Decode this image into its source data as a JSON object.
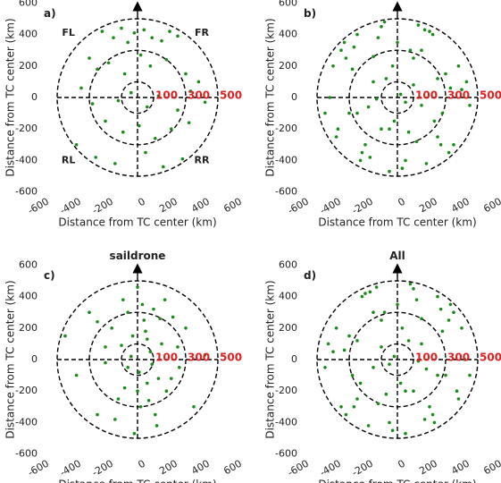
{
  "chart_data": [
    {
      "type": "scatter",
      "panel_label": "a)",
      "x_label": "Distance from TC center (km)",
      "y_label": "Distance from TC center (km)",
      "xlim": [
        -600,
        600
      ],
      "ylim": [
        -600,
        600
      ],
      "xticks": [
        -600,
        -400,
        -200,
        0,
        200,
        400,
        600
      ],
      "yticks": [
        -600,
        -400,
        -200,
        0,
        200,
        400,
        600
      ],
      "rings": [
        100,
        300,
        500
      ],
      "quadrant_labels": [
        "FL",
        "FR",
        "RL",
        "RR"
      ],
      "series": [
        {
          "color": "#1a8a1a",
          "x": [
            -220,
            -150,
            -100,
            -60,
            -20,
            40,
            90,
            150,
            200,
            250,
            -300,
            -250,
            -180,
            -80,
            20,
            80,
            180,
            300,
            380,
            -350,
            -280,
            -120,
            -40,
            60,
            130,
            250,
            330,
            420,
            -200,
            -90,
            10,
            110,
            210,
            320,
            -380,
            -260,
            -140,
            50,
            160,
            280
          ],
          "values": [
            420,
            380,
            440,
            350,
            410,
            430,
            380,
            360,
            420,
            390,
            250,
            180,
            220,
            150,
            270,
            200,
            240,
            150,
            100,
            60,
            -40,
            -20,
            30,
            -60,
            10,
            -80,
            40,
            -30,
            -150,
            -220,
            -180,
            -260,
            -200,
            -160,
            -300,
            -380,
            -420,
            -350,
            -440,
            -390
          ]
        }
      ]
    },
    {
      "type": "scatter",
      "panel_label": "b)",
      "x_label": "Distance from TC center (km)",
      "y_label": "Distance from TC center (km)",
      "xlim": [
        -600,
        600
      ],
      "ylim": [
        -600,
        600
      ],
      "xticks": [
        -600,
        -400,
        -200,
        0,
        200,
        400,
        600
      ],
      "yticks": [
        -600,
        -400,
        -200,
        0,
        200,
        400,
        600
      ],
      "rings": [
        100,
        300,
        500
      ],
      "series": [
        {
          "color": "#1a8a1a",
          "x": [
            -400,
            -350,
            -300,
            -250,
            -200,
            -150,
            -100,
            -50,
            0,
            50,
            100,
            150,
            200,
            250,
            300,
            350,
            400,
            -420,
            -320,
            -220,
            -120,
            -20,
            80,
            180,
            280,
            380,
            450,
            -450,
            -370,
            -270,
            -170,
            -70,
            30,
            130,
            230,
            330,
            430,
            -380,
            -280,
            -180,
            -80,
            20,
            120,
            220,
            320,
            -330,
            -230,
            -130,
            -30,
            70,
            170,
            270,
            -250,
            -150,
            -50,
            50,
            150,
            250,
            -100,
            100
          ],
          "values": [
            200,
            300,
            -100,
            400,
            -300,
            100,
            450,
            -200,
            350,
            -400,
            250,
            -50,
            420,
            -250,
            150,
            -300,
            50,
            0,
            250,
            -350,
            380,
            -150,
            300,
            -420,
            -100,
            200,
            -50,
            -100,
            -200,
            320,
            -380,
            120,
            -450,
            460,
            -150,
            60,
            100,
            -250,
            180,
            -60,
            480,
            20,
            -280,
            400,
            -350,
            350,
            -400,
            -10,
            200,
            -220,
            430,
            -300,
            -100,
            260,
            -470,
            -30,
            300,
            120,
            -200,
            80
          ]
        }
      ]
    },
    {
      "type": "scatter",
      "panel_label": "c)",
      "title": "saildrone",
      "x_label": "Distance from TC center (km)",
      "y_label": "Distance from TC center (km)",
      "xlim": [
        -600,
        600
      ],
      "ylim": [
        -600,
        600
      ],
      "xticks": [
        -600,
        -400,
        -200,
        0,
        200,
        400,
        600
      ],
      "yticks": [
        -600,
        -400,
        -200,
        0,
        200,
        400,
        600
      ],
      "rings": [
        100,
        300,
        500
      ],
      "series": [
        {
          "color": "#1a8a1a",
          "x": [
            -450,
            -380,
            -300,
            -250,
            -200,
            -160,
            -120,
            -90,
            -60,
            -30,
            0,
            20,
            40,
            60,
            80,
            100,
            120,
            150,
            180,
            220,
            260,
            300,
            350,
            420,
            -140,
            -80,
            -40,
            10,
            50,
            90,
            130,
            170,
            -200,
            -100,
            0,
            70,
            140,
            210,
            -60,
            30,
            110,
            -250,
            250,
            -20,
            60
          ],
          "values": [
            150,
            -100,
            300,
            -350,
            80,
            200,
            -250,
            380,
            -50,
            150,
            460,
            -300,
            250,
            -150,
            50,
            320,
            -420,
            100,
            -200,
            270,
            -50,
            200,
            -300,
            30,
            -380,
            -180,
            20,
            -80,
            180,
            -30,
            -120,
            380,
            -20,
            90,
            -200,
            -260,
            260,
            -120,
            300,
            350,
            -350,
            240,
            80,
            -470,
            130
          ]
        }
      ]
    },
    {
      "type": "scatter",
      "panel_label": "d)",
      "title": "All",
      "x_label": "Distance from TC center (km)",
      "y_label": "Distance from TC center (km)",
      "xlim": [
        -600,
        600
      ],
      "ylim": [
        -600,
        600
      ],
      "xticks": [
        -600,
        -400,
        -200,
        0,
        200,
        400,
        600
      ],
      "yticks": [
        -600,
        -400,
        -200,
        0,
        200,
        400,
        600
      ],
      "rings": [
        100,
        300,
        500
      ],
      "series": [
        {
          "color": "#1a8a1a",
          "x": [
            400,
            350,
            300,
            250,
            200,
            150,
            100,
            50,
            0,
            -50,
            -100,
            -150,
            -200,
            -250,
            -300,
            -350,
            -400,
            420,
            320,
            220,
            120,
            20,
            -80,
            -180,
            -280,
            -380,
            -450,
            450,
            370,
            270,
            170,
            70,
            -30,
            -130,
            -230,
            -330,
            -430,
            380,
            280,
            180,
            80,
            -20,
            -120,
            -220,
            -320,
            330,
            230,
            130,
            30,
            -70,
            -170,
            -270,
            250,
            150,
            50,
            -50,
            -150,
            -250,
            100,
            -100
          ],
          "values": [
            200,
            300,
            -100,
            400,
            -300,
            100,
            450,
            -200,
            350,
            -400,
            250,
            -50,
            420,
            -250,
            150,
            -300,
            50,
            0,
            250,
            -350,
            380,
            -150,
            300,
            -420,
            -100,
            200,
            -50,
            -100,
            -200,
            320,
            -380,
            120,
            -450,
            460,
            -150,
            60,
            100,
            -250,
            180,
            -60,
            480,
            20,
            -280,
            400,
            -350,
            350,
            -400,
            -10,
            200,
            -220,
            430,
            -300,
            -100,
            260,
            -470,
            -30,
            300,
            120,
            -200,
            80
          ]
        }
      ]
    }
  ]
}
